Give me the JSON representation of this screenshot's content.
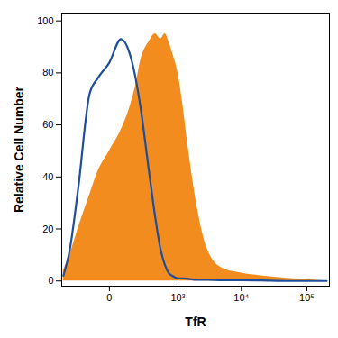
{
  "chart_data": {
    "type": "line",
    "x_label": "TfR",
    "y_label": "Relative Cell Number",
    "x": [
      -400,
      -300,
      -200,
      -100,
      -50,
      0,
      50,
      100,
      150,
      200,
      300,
      400,
      500,
      600,
      700,
      800,
      1000,
      1200,
      1500,
      2000,
      3000,
      5000,
      10000,
      20000,
      50000,
      100000,
      200000
    ],
    "series": [
      {
        "type": "area",
        "color": "#f28c1e",
        "values": [
          4,
          10,
          20,
          33,
          42,
          50,
          58,
          66,
          75,
          85,
          92,
          95,
          93,
          95,
          92,
          88,
          80,
          68,
          50,
          30,
          12,
          5,
          3,
          2,
          1,
          0.5,
          0
        ]
      },
      {
        "type": "line",
        "color": "#1f4e9c",
        "values": [
          2,
          12,
          35,
          72,
          78,
          84,
          93,
          88,
          78,
          66,
          42,
          24,
          12,
          6,
          3,
          2,
          1,
          1,
          0.8,
          0.5,
          0.5,
          0.3,
          0.3,
          0.2,
          0,
          0,
          0
        ]
      }
    ],
    "xlim": [
      -430,
      220000
    ],
    "xticks": [
      0,
      {
        "value": 1000,
        "label": "10³"
      },
      {
        "value": 10000,
        "label": "10⁴"
      },
      {
        "value": 100000,
        "label": "10⁵"
      }
    ],
    "ylim": [
      -2,
      103
    ],
    "yticks": [
      0,
      20,
      40,
      60,
      80,
      100
    ],
    "grid": false
  }
}
